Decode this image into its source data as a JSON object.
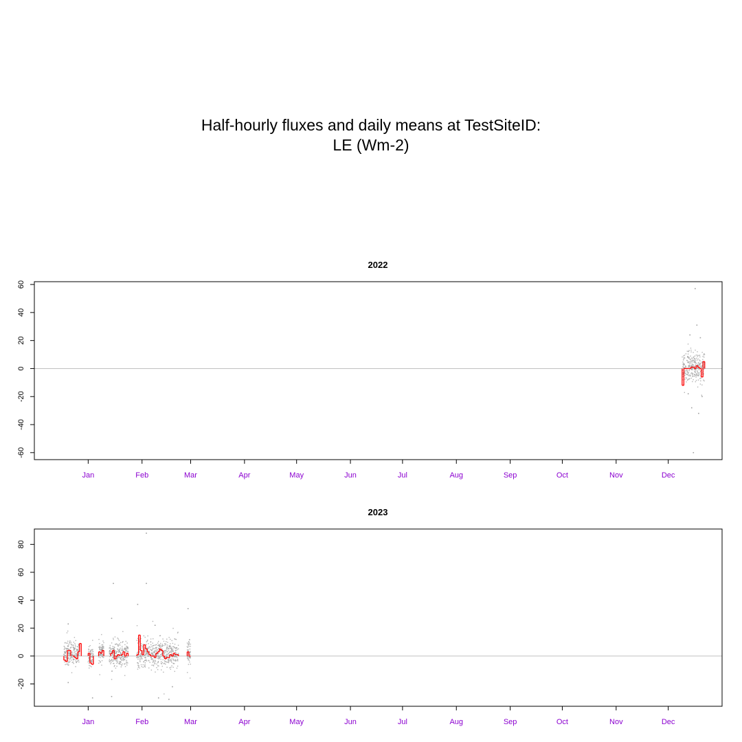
{
  "figure": {
    "title_line1": "Half-hourly fluxes and daily means at TestSiteID:",
    "title_line2": "LE (Wm-2)"
  },
  "colors": {
    "points": "#a0a0a0",
    "daily_mean": "#ff0000",
    "zero_line": "#c0c0c0",
    "month_labels": "#8b00d0",
    "axis": "#000000"
  },
  "chart_data": [
    {
      "type": "scatter",
      "title": "2022",
      "xlabel": "",
      "ylabel": "",
      "x_unit": "day of year",
      "xlim": [
        -31,
        365
      ],
      "ylim": [
        -65,
        62
      ],
      "yticks": [
        -60,
        -40,
        -20,
        0,
        20,
        40,
        60
      ],
      "month_ticks": [
        {
          "label": "Jan",
          "day": 0
        },
        {
          "label": "Feb",
          "day": 31
        },
        {
          "label": "Mar",
          "day": 59
        },
        {
          "label": "Apr",
          "day": 90
        },
        {
          "label": "May",
          "day": 120
        },
        {
          "label": "Jun",
          "day": 151
        },
        {
          "label": "Jul",
          "day": 181
        },
        {
          "label": "Aug",
          "day": 212
        },
        {
          "label": "Sep",
          "day": 243
        },
        {
          "label": "Oct",
          "day": 273
        },
        {
          "label": "Nov",
          "day": 304
        },
        {
          "label": "Dec",
          "day": 334
        }
      ],
      "grid": false,
      "zero_line": true,
      "half_hourly_coverage": [
        {
          "start": 342,
          "end": 355,
          "spread": 9,
          "center": 1
        }
      ],
      "outliers": [
        [
          349,
          57
        ],
        [
          348,
          -60
        ],
        [
          350,
          31
        ],
        [
          347,
          -28
        ],
        [
          351,
          -32
        ],
        [
          352,
          22
        ],
        [
          346,
          24
        ],
        [
          345,
          -18
        ],
        [
          353,
          -20
        ]
      ],
      "daily_means": [
        [
          342,
          -12
        ],
        [
          343,
          0
        ],
        [
          344,
          0
        ],
        [
          345,
          0
        ],
        [
          346,
          0
        ],
        [
          347,
          1
        ],
        [
          348,
          1
        ],
        [
          349,
          0
        ],
        [
          350,
          2
        ],
        [
          351,
          1
        ],
        [
          352,
          0
        ],
        [
          353,
          -6
        ],
        [
          354,
          5
        ]
      ]
    },
    {
      "type": "scatter",
      "title": "2023",
      "xlabel": "",
      "ylabel": "",
      "x_unit": "day of year",
      "xlim": [
        -31,
        365
      ],
      "ylim": [
        -36,
        91
      ],
      "yticks": [
        -20,
        0,
        20,
        40,
        60,
        80
      ],
      "month_ticks": [
        {
          "label": "Jan",
          "day": 0
        },
        {
          "label": "Feb",
          "day": 31
        },
        {
          "label": "Mar",
          "day": 59
        },
        {
          "label": "Apr",
          "day": 90
        },
        {
          "label": "May",
          "day": 120
        },
        {
          "label": "Jun",
          "day": 151
        },
        {
          "label": "Jul",
          "day": 181
        },
        {
          "label": "Aug",
          "day": 212
        },
        {
          "label": "Sep",
          "day": 243
        },
        {
          "label": "Oct",
          "day": 273
        },
        {
          "label": "Nov",
          "day": 304
        },
        {
          "label": "Dec",
          "day": 334
        }
      ],
      "grid": false,
      "zero_line": true,
      "half_hourly_coverage": [
        {
          "start": -14,
          "end": -5,
          "spread": 8,
          "center": 2
        },
        {
          "start": 0,
          "end": 3,
          "spread": 6,
          "center": 0
        },
        {
          "start": 6,
          "end": 9,
          "spread": 6,
          "center": 3
        },
        {
          "start": 12,
          "end": 23,
          "spread": 8,
          "center": 1
        },
        {
          "start": 28,
          "end": 52,
          "spread": 9,
          "center": 2
        },
        {
          "start": 57,
          "end": 59,
          "spread": 10,
          "center": 3
        }
      ],
      "outliers": [
        [
          33,
          88
        ],
        [
          14,
          52
        ],
        [
          33,
          52
        ],
        [
          28,
          37
        ],
        [
          57,
          34
        ],
        [
          13,
          27
        ],
        [
          -12,
          23
        ],
        [
          38,
          22
        ],
        [
          -12,
          -19
        ],
        [
          2,
          -30
        ],
        [
          13,
          -29
        ],
        [
          40,
          -30
        ],
        [
          46,
          -31
        ],
        [
          48,
          -22
        ]
      ],
      "daily_means": [
        [
          -14,
          -3
        ],
        [
          -13,
          -4
        ],
        [
          -12,
          4
        ],
        [
          -11,
          4
        ],
        [
          -9,
          0
        ],
        [
          -8,
          -1
        ],
        [
          -7,
          -2
        ],
        [
          -6,
          3
        ],
        [
          -5,
          9
        ],
        [
          0,
          2
        ],
        [
          1,
          -5
        ],
        [
          2,
          -6
        ],
        [
          6,
          3
        ],
        [
          7,
          2
        ],
        [
          8,
          4
        ],
        [
          13,
          2
        ],
        [
          14,
          4
        ],
        [
          15,
          -2
        ],
        [
          16,
          0
        ],
        [
          17,
          1
        ],
        [
          19,
          1
        ],
        [
          20,
          3
        ],
        [
          21,
          0
        ],
        [
          22,
          2
        ],
        [
          28,
          1
        ],
        [
          29,
          15
        ],
        [
          30,
          4
        ],
        [
          31,
          1
        ],
        [
          32,
          8
        ],
        [
          33,
          5
        ],
        [
          34,
          3
        ],
        [
          35,
          1
        ],
        [
          36,
          0
        ],
        [
          37,
          0
        ],
        [
          38,
          -1
        ],
        [
          39,
          2
        ],
        [
          40,
          3
        ],
        [
          41,
          5
        ],
        [
          42,
          4
        ],
        [
          43,
          0
        ],
        [
          44,
          -2
        ],
        [
          45,
          -1
        ],
        [
          46,
          -1
        ],
        [
          47,
          1
        ],
        [
          48,
          0
        ],
        [
          49,
          2
        ],
        [
          50,
          1
        ],
        [
          51,
          1
        ],
        [
          57,
          3
        ],
        [
          58,
          0
        ]
      ]
    }
  ]
}
